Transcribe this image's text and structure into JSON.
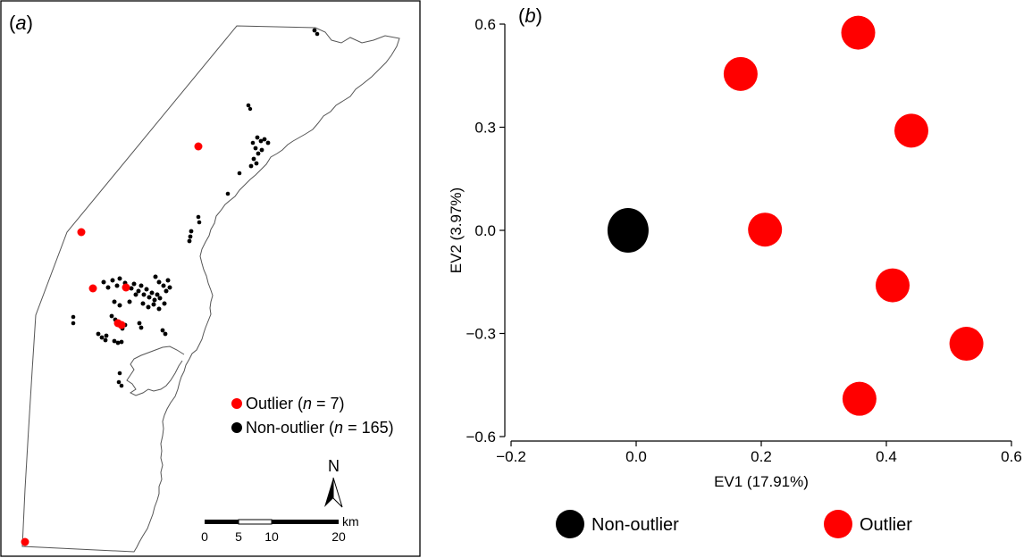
{
  "colors": {
    "outlier": "#ff0000",
    "non_outlier": "#000000",
    "frame": "#000000",
    "coast": "#555555"
  },
  "panel_a": {
    "label_open": "(",
    "label_letter": "a",
    "label_close": ")",
    "legend": [
      {
        "name": "Outlier",
        "italic": "n",
        "rest": " = 7)",
        "color": "#ff0000"
      },
      {
        "name": "Non-outlier",
        "italic": "n",
        "rest": " = 165)",
        "color": "#000000"
      }
    ],
    "north_label": "N",
    "scalebar": {
      "ticks": [
        "0",
        "5",
        "10",
        "20"
      ],
      "unit": "km"
    }
  },
  "panel_b": {
    "label_open": "(",
    "label_letter": "b",
    "label_close": ")",
    "legend": [
      {
        "name": "Non-outlier",
        "color": "#000000"
      },
      {
        "name": "Outlier",
        "color": "#ff0000"
      }
    ]
  },
  "chart_data": [
    {
      "type": "map",
      "panel": "a",
      "series": [
        {
          "name": "Outlier",
          "count": 7
        },
        {
          "name": "Non-outlier",
          "count": 165
        }
      ]
    },
    {
      "type": "scatter",
      "panel": "b",
      "xlabel": "EV1 (17.91%)",
      "ylabel": "EV2 (3.97%)",
      "xlim": [
        -0.2,
        0.6
      ],
      "ylim": [
        -0.6,
        0.6
      ],
      "xticks": [
        "−0.2",
        "0.0",
        "0.2",
        "0.4",
        "0.6"
      ],
      "xtick_values": [
        -0.2,
        0.0,
        0.2,
        0.4,
        0.6
      ],
      "yticks": [
        "0.6",
        "0.3",
        "0.0",
        "−0.3",
        "−0.6"
      ],
      "ytick_values": [
        0.6,
        0.3,
        0.0,
        -0.3,
        -0.6
      ],
      "grid": false,
      "legend_position": "bottom",
      "series": [
        {
          "name": "Non-outlier",
          "points": [
            [
              -0.013,
              0.0
            ]
          ]
        },
        {
          "name": "Outlier",
          "points": [
            [
              0.355,
              0.575
            ],
            [
              0.167,
              0.455
            ],
            [
              0.44,
              0.29
            ],
            [
              0.206,
              0.002
            ],
            [
              0.41,
              -0.16
            ],
            [
              0.528,
              -0.33
            ],
            [
              0.357,
              -0.49
            ]
          ]
        }
      ]
    }
  ]
}
